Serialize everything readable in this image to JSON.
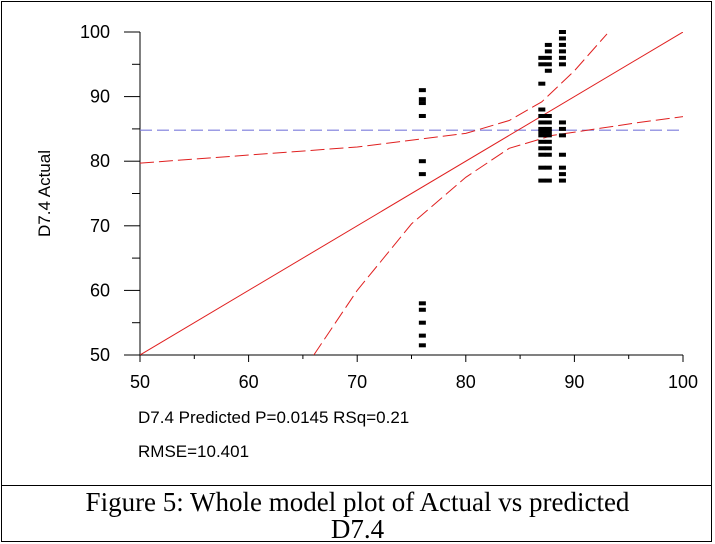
{
  "chart_data": {
    "type": "scatter",
    "xlim": [
      50,
      100
    ],
    "ylim": [
      50,
      100
    ],
    "xticks": [
      50,
      60,
      70,
      80,
      90,
      100
    ],
    "yticks": [
      50,
      60,
      70,
      80,
      90,
      100
    ],
    "ylabel": "D7.4 Actual",
    "xlabel_line1": "D7.4 Predicted P=0.0145 RSq=0.21",
    "xlabel_line2": "RMSE=10.401",
    "mean_line": {
      "y": 84.8,
      "color": "#7b7bdc"
    },
    "fit_line": {
      "points": [
        [
          50,
          50
        ],
        [
          100,
          100
        ]
      ],
      "color": "#e02020"
    },
    "confidence_upper": [
      [
        50,
        79.7
      ],
      [
        70,
        82.2
      ],
      [
        80,
        84.3
      ],
      [
        84,
        86.3
      ],
      [
        87,
        89.2
      ],
      [
        90,
        94.0
      ],
      [
        93,
        99.7
      ]
    ],
    "confidence_lower": [
      [
        66,
        50
      ],
      [
        70,
        60
      ],
      [
        75,
        70.3
      ],
      [
        80,
        77.5
      ],
      [
        84,
        82.0
      ],
      [
        88,
        84.0
      ],
      [
        92,
        85.0
      ],
      [
        96,
        86.0
      ],
      [
        100,
        86.9
      ]
    ],
    "points": [
      [
        76,
        51.5
      ],
      [
        76,
        53
      ],
      [
        76,
        55
      ],
      [
        76,
        57
      ],
      [
        76,
        58
      ],
      [
        76,
        78
      ],
      [
        76,
        80
      ],
      [
        76,
        87
      ],
      [
        76,
        89
      ],
      [
        76,
        89.6
      ],
      [
        76,
        91
      ],
      [
        87,
        77
      ],
      [
        87,
        79
      ],
      [
        87,
        81
      ],
      [
        87,
        82
      ],
      [
        87,
        83
      ],
      [
        87,
        84
      ],
      [
        87,
        84.6
      ],
      [
        87,
        85
      ],
      [
        87,
        86
      ],
      [
        87,
        87
      ],
      [
        87,
        88
      ],
      [
        87,
        92
      ],
      [
        87,
        95
      ],
      [
        87,
        96
      ],
      [
        87.6,
        77
      ],
      [
        87.6,
        79
      ],
      [
        87.6,
        81
      ],
      [
        87.6,
        82
      ],
      [
        87.6,
        83
      ],
      [
        87.6,
        84
      ],
      [
        87.6,
        84.6
      ],
      [
        87.6,
        85
      ],
      [
        87.6,
        86
      ],
      [
        87.6,
        87
      ],
      [
        87.6,
        94
      ],
      [
        87.6,
        95
      ],
      [
        87.6,
        96
      ],
      [
        87.6,
        97
      ],
      [
        87.6,
        98
      ],
      [
        88.9,
        77
      ],
      [
        88.9,
        78
      ],
      [
        88.9,
        79
      ],
      [
        88.9,
        81
      ],
      [
        88.9,
        84
      ],
      [
        88.9,
        85
      ],
      [
        88.9,
        86
      ],
      [
        88.9,
        95
      ],
      [
        88.9,
        96
      ],
      [
        88.9,
        97
      ],
      [
        88.9,
        98
      ],
      [
        88.9,
        99
      ],
      [
        88.9,
        100
      ]
    ]
  },
  "caption_line1": "Figure 5: Whole model plot of Actual vs predicted",
  "caption_line2": "D7.4"
}
